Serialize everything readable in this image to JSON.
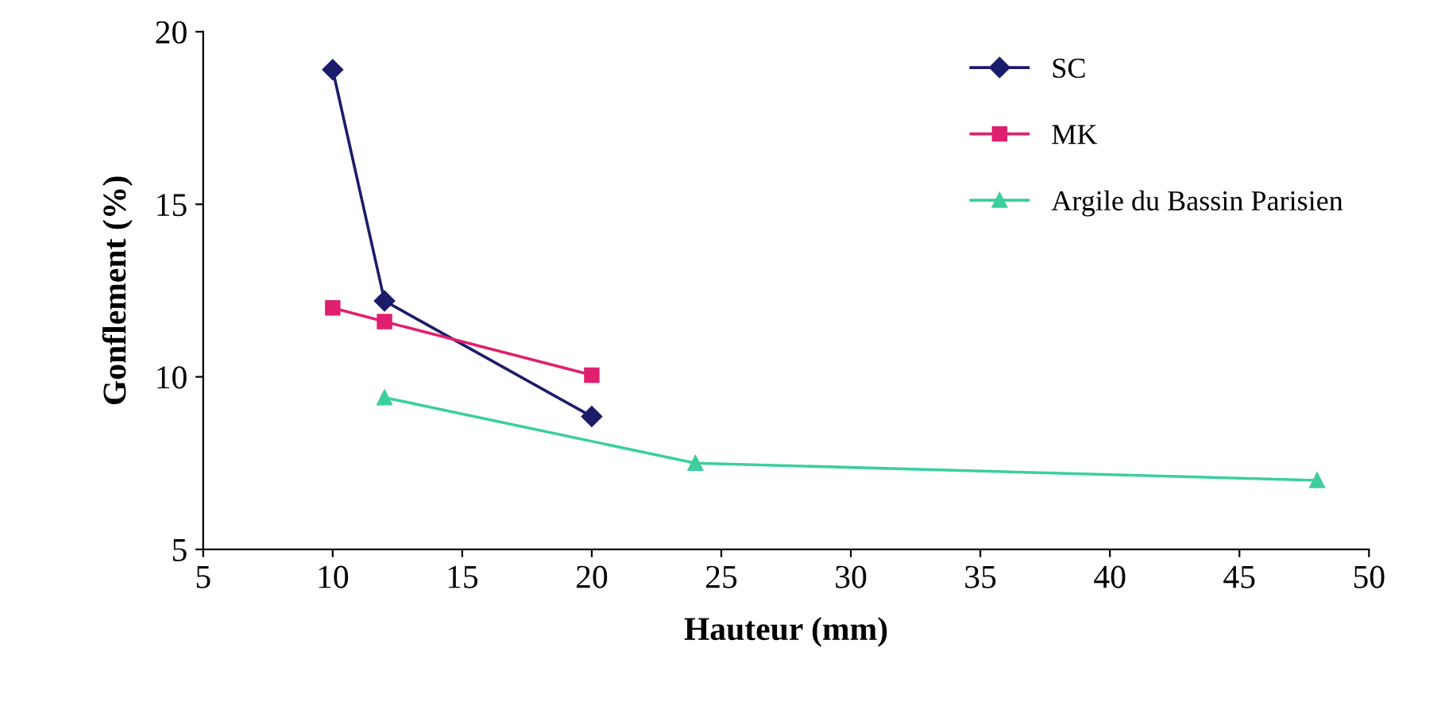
{
  "chart_data": {
    "type": "line",
    "xlabel": "Hauteur (mm)",
    "ylabel": "Gonflement (%)",
    "xlim": [
      5,
      50
    ],
    "xticks": [
      5,
      10,
      15,
      20,
      25,
      30,
      35,
      40,
      45,
      50
    ],
    "ylim": [
      5,
      20
    ],
    "yticks": [
      5,
      10,
      15,
      20
    ],
    "grid": false,
    "legend": "top right",
    "series": [
      {
        "name": "SC",
        "color": "#1c1c6b",
        "marker": "diamond",
        "x": [
          10,
          12,
          20
        ],
        "values": [
          18.9,
          12.2,
          8.85
        ]
      },
      {
        "name": "MK",
        "color": "#e0206e",
        "marker": "square",
        "x": [
          10,
          12,
          20
        ],
        "values": [
          12.0,
          11.6,
          10.05
        ]
      },
      {
        "name": "Argile du Bassin Parisien",
        "color": "#3ccf9c",
        "marker": "triangle",
        "x": [
          12,
          24,
          48
        ],
        "values": [
          9.4,
          7.5,
          7.0
        ]
      }
    ]
  }
}
